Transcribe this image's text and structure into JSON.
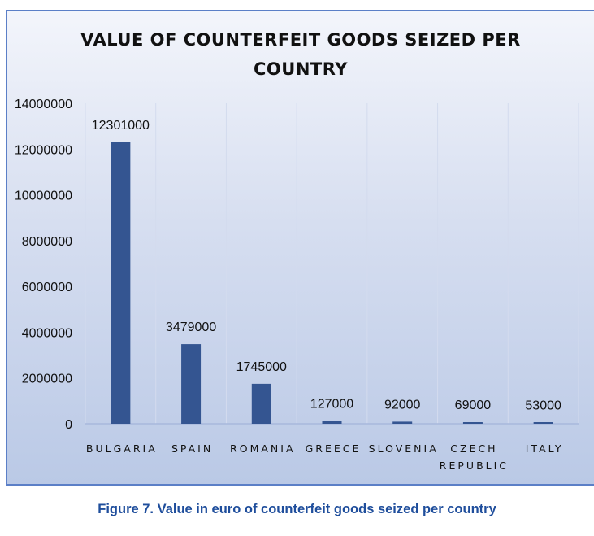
{
  "chart_data": {
    "type": "bar",
    "title_lines": [
      "VALUE OF COUNTERFEIT GOODS SEIZED PER",
      "COUNTRY"
    ],
    "categories": [
      [
        "BULGARIA"
      ],
      [
        "SPAIN"
      ],
      [
        "ROMANIA"
      ],
      [
        "GREECE"
      ],
      [
        "SLOVENIA"
      ],
      [
        "CZECH",
        "REPUBLIC"
      ],
      [
        "ITALY"
      ]
    ],
    "values": [
      12301000,
      3479000,
      1745000,
      127000,
      92000,
      69000,
      53000
    ],
    "data_labels": [
      "12301000",
      "3479000",
      "1745000",
      "127000",
      "92000",
      "69000",
      "53000"
    ],
    "xlabel": "",
    "ylabel": "",
    "ylim": [
      0,
      14000000
    ],
    "yticks": [
      0,
      2000000,
      4000000,
      6000000,
      8000000,
      10000000,
      12000000,
      14000000
    ],
    "ytick_labels": [
      "0",
      "2000000",
      "4000000",
      "6000000",
      "8000000",
      "10000000",
      "12000000",
      "14000000"
    ],
    "grid": "vertical category separators",
    "legend": "none",
    "bar_color": "#345591"
  },
  "caption": "Figure 7. Value in euro of counterfeit goods seized per country",
  "colors": {
    "caption": "#1f4e9c",
    "frame_border": "#5b7fc7"
  }
}
